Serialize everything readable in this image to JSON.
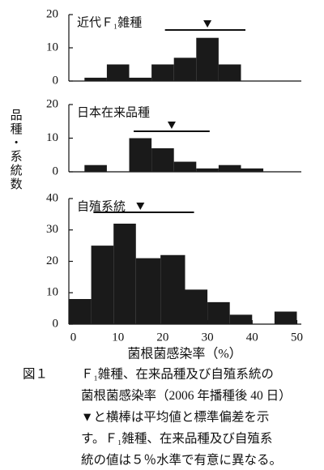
{
  "ylabel": "品種・系統数",
  "xlabel": "菌根菌感染率（%）",
  "figure_label": "図１",
  "caption": [
    "Ｆ₁雑種、在来品種及び自殖系統の",
    "菌根菌感染率（2006 年播種後 40 日）",
    "▼と横棒は平均値と標準偏差を示",
    "す。Ｆ₁雑種、在来品種及び自殖系",
    "統の値は５％水準で有意に異なる。"
  ],
  "chart_data": [
    {
      "type": "histogram",
      "title": "近代Ｆ₁雑種",
      "color": "#1a1a1a",
      "bins": [
        2.5,
        7.5,
        12.5,
        17.5,
        22.5,
        27.5,
        32.5,
        37.5
      ],
      "values": [
        1,
        5,
        1,
        5,
        7,
        13,
        5
      ],
      "mean": 30,
      "sd_range": [
        20.5,
        38.5
      ],
      "xlim": [
        -1,
        51
      ],
      "ylim": [
        0,
        20
      ],
      "yticks": [
        0,
        10,
        20
      ]
    },
    {
      "type": "histogram",
      "title": "日本在来品種",
      "color": "#1a1a1a",
      "bins": [
        2.5,
        7.5,
        12.5,
        17.5,
        22.5,
        27.5,
        32.5,
        37.5,
        42.5
      ],
      "values": [
        2,
        0,
        10,
        7,
        3,
        1,
        2,
        1
      ],
      "mean": 22,
      "sd_range": [
        13.5,
        30.5
      ],
      "xlim": [
        -1,
        51
      ],
      "ylim": [
        0,
        20
      ],
      "yticks": [
        0,
        10,
        20
      ]
    },
    {
      "type": "histogram",
      "title": "自殖系統",
      "color": "#1a1a1a",
      "bins": [
        -1,
        4,
        9,
        14,
        19.5,
        25,
        30,
        35,
        40,
        45,
        50
      ],
      "values": [
        8,
        25,
        32,
        21,
        22,
        11,
        7,
        3,
        0,
        4
      ],
      "mean": 15,
      "sd_range": [
        4.5,
        27
      ],
      "xlim": [
        -1,
        51
      ],
      "ylim": [
        0,
        40
      ],
      "yticks": [
        0,
        10,
        20,
        30,
        40
      ],
      "xticks": [
        0,
        10,
        20,
        30,
        40,
        50
      ]
    }
  ]
}
